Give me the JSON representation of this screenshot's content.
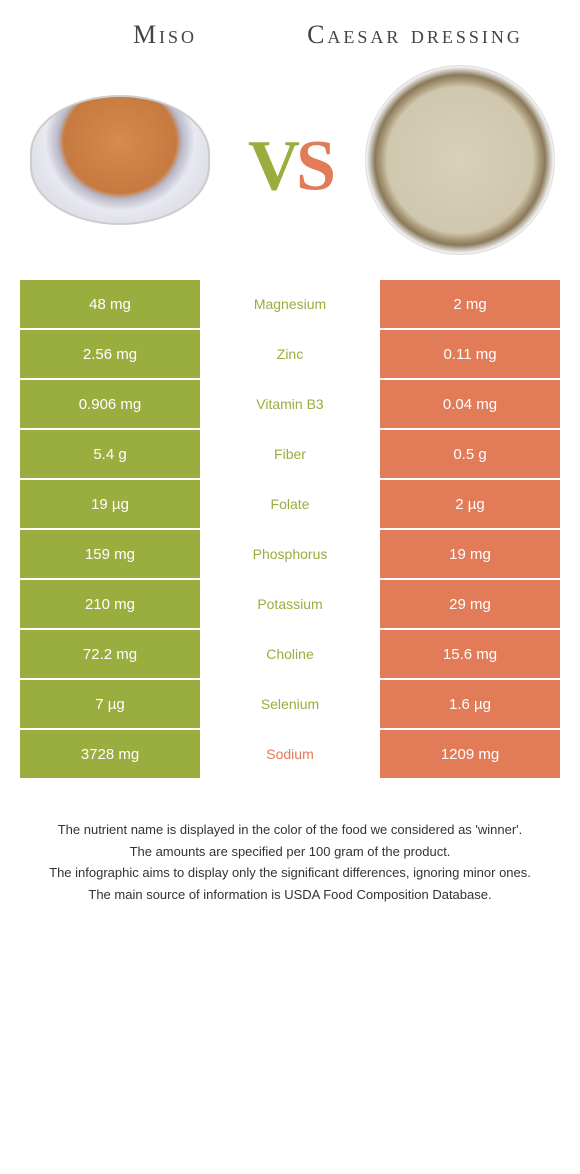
{
  "header": {
    "left_title": "Miso",
    "right_title": "Caesar dressing"
  },
  "vs": {
    "v": "V",
    "s": "S"
  },
  "colors": {
    "left_bg": "#9aad3f",
    "right_bg": "#e27b58",
    "mid_bg": "#ffffff",
    "label_left_color": "#9aad3f",
    "label_right_color": "#e27b58",
    "row_border": "#ffffff"
  },
  "table": {
    "rows": [
      {
        "left": "48 mg",
        "label": "Magnesium",
        "right": "2 mg",
        "winner": "left"
      },
      {
        "left": "2.56 mg",
        "label": "Zinc",
        "right": "0.11 mg",
        "winner": "left"
      },
      {
        "left": "0.906 mg",
        "label": "Vitamin B3",
        "right": "0.04 mg",
        "winner": "left"
      },
      {
        "left": "5.4 g",
        "label": "Fiber",
        "right": "0.5 g",
        "winner": "left"
      },
      {
        "left": "19 µg",
        "label": "Folate",
        "right": "2 µg",
        "winner": "left"
      },
      {
        "left": "159 mg",
        "label": "Phosphorus",
        "right": "19 mg",
        "winner": "left"
      },
      {
        "left": "210 mg",
        "label": "Potassium",
        "right": "29 mg",
        "winner": "left"
      },
      {
        "left": "72.2 mg",
        "label": "Choline",
        "right": "15.6 mg",
        "winner": "left"
      },
      {
        "left": "7 µg",
        "label": "Selenium",
        "right": "1.6 µg",
        "winner": "left"
      },
      {
        "left": "3728 mg",
        "label": "Sodium",
        "right": "1209 mg",
        "winner": "right"
      }
    ]
  },
  "footnotes": {
    "line1": "The nutrient name is displayed in the color of the food we considered as 'winner'.",
    "line2": "The amounts are specified per 100 gram of the product.",
    "line3": "The infographic aims to display only the significant differences, ignoring minor ones.",
    "line4": "The main source of information is USDA Food Composition Database."
  }
}
